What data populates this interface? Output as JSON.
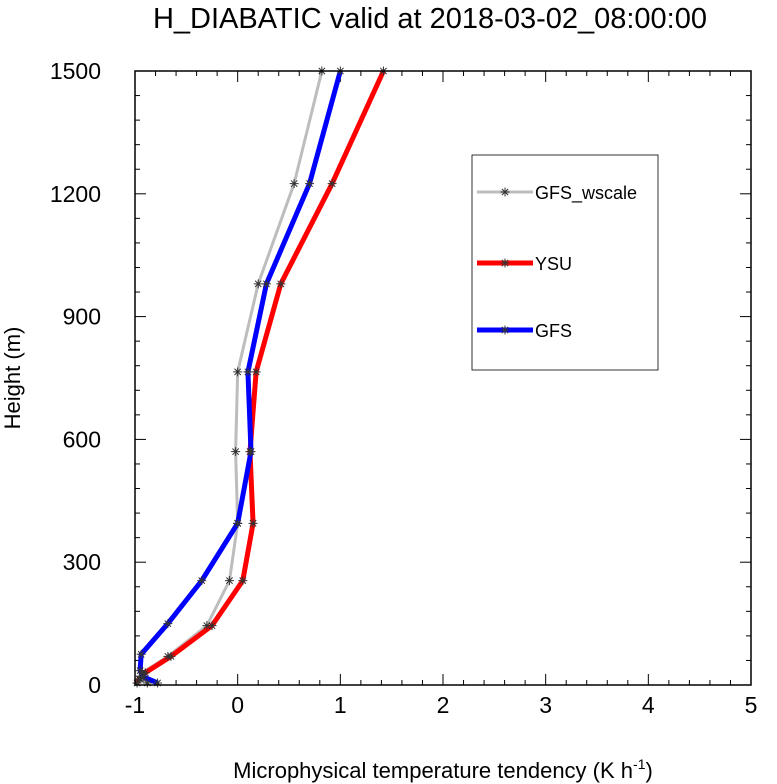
{
  "chart_data": {
    "type": "line",
    "title": "H_DIABATIC valid at 2018-03-02_08:00:00",
    "xlabel": "Microphysical temperature tendency (K h",
    "xlabel_sup": "-1",
    "xlabel_close": ")",
    "ylabel": "Height (m)",
    "xlim": [
      -1,
      5
    ],
    "ylim": [
      0,
      1500
    ],
    "xticks": [
      -1,
      0,
      1,
      2,
      3,
      4,
      5
    ],
    "yticks": [
      0,
      300,
      600,
      900,
      1200,
      1500
    ],
    "grid": false,
    "legend_position": "upper-right",
    "marker": "asterisk",
    "series": [
      {
        "name": "GFS_wscale",
        "color": "#bdbdbd",
        "x": [
          -0.88,
          -0.95,
          -0.93,
          -0.68,
          -0.3,
          -0.08,
          0.0,
          -0.02,
          0.0,
          0.2,
          0.55,
          0.82
        ],
        "y": [
          5,
          15,
          30,
          70,
          145,
          255,
          395,
          570,
          765,
          980,
          1225,
          1500
        ]
      },
      {
        "name": "YSU",
        "color": "#ff0000",
        "x": [
          -0.98,
          -0.96,
          -0.9,
          -0.65,
          -0.25,
          0.05,
          0.15,
          0.12,
          0.18,
          0.42,
          0.92,
          1.42
        ],
        "y": [
          5,
          15,
          30,
          70,
          145,
          255,
          395,
          570,
          765,
          980,
          1225,
          1500
        ]
      },
      {
        "name": "GFS",
        "color": "#0000ff",
        "x": [
          -0.78,
          -0.92,
          -0.95,
          -0.94,
          -0.68,
          -0.35,
          0.0,
          0.13,
          0.1,
          0.28,
          0.7,
          1.0
        ],
        "y": [
          5,
          20,
          35,
          75,
          150,
          255,
          395,
          570,
          765,
          980,
          1225,
          1500
        ]
      }
    ]
  }
}
